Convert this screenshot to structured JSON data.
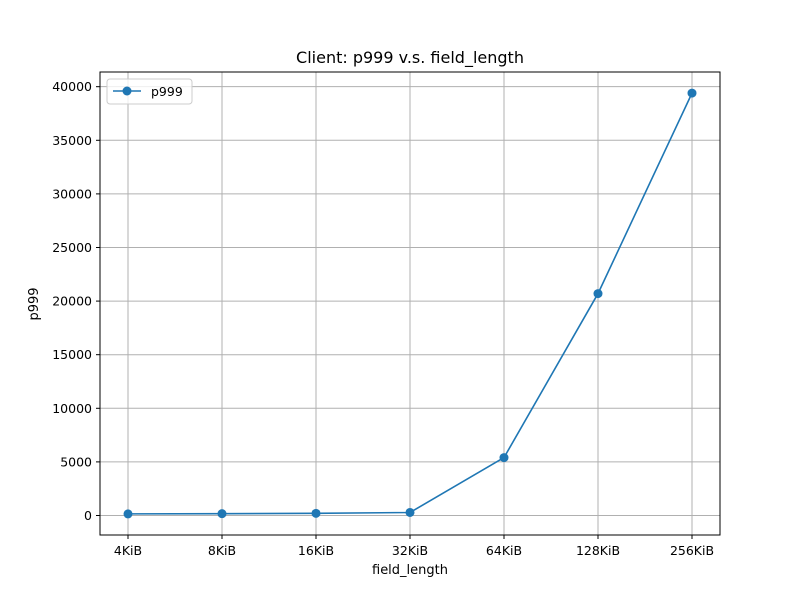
{
  "chart_data": {
    "type": "line",
    "title": "Client: p999 v.s. field_length",
    "xlabel": "field_length",
    "ylabel": "p999",
    "categories": [
      "4KiB",
      "8KiB",
      "16KiB",
      "32KiB",
      "64KiB",
      "128KiB",
      "256KiB"
    ],
    "series": [
      {
        "name": "p999",
        "values": [
          150,
          170,
          200,
          280,
          5400,
          20700,
          39400
        ],
        "color": "#1f77b4",
        "marker": "circle"
      }
    ],
    "yticks": [
      0,
      5000,
      10000,
      15000,
      20000,
      25000,
      30000,
      35000,
      40000
    ],
    "ylim": [
      -1820,
      41370
    ],
    "grid": true,
    "legend_position": "top-left"
  }
}
